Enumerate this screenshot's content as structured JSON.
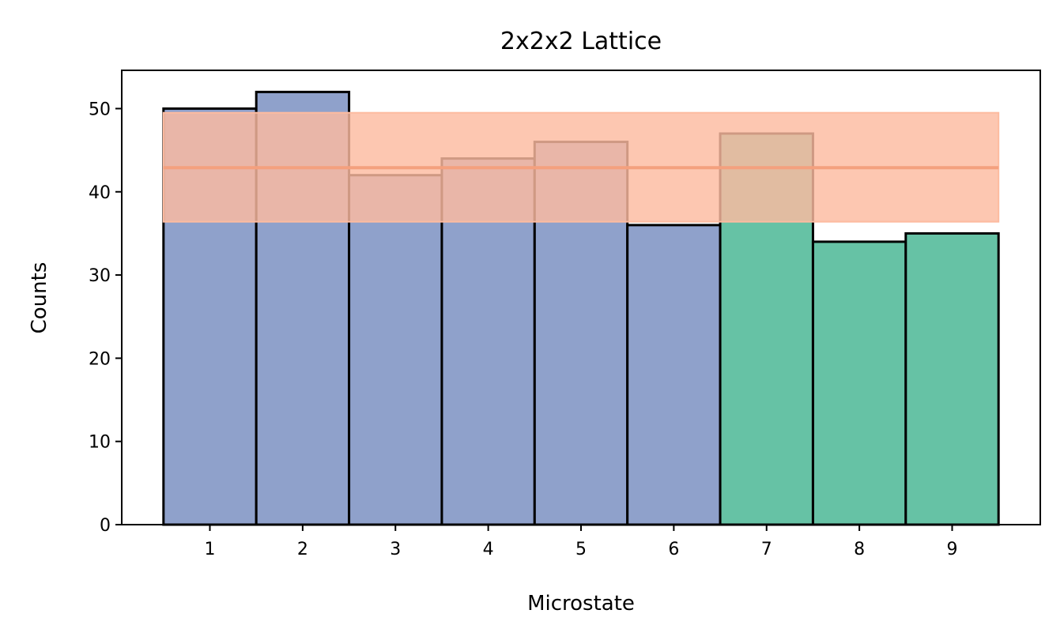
{
  "chart_data": {
    "type": "bar",
    "title": "2x2x2 Lattice",
    "xlabel": "Microstate",
    "ylabel": "Counts",
    "categories": [
      "1",
      "2",
      "3",
      "4",
      "5",
      "6",
      "7",
      "8",
      "9"
    ],
    "values": [
      50,
      52,
      42,
      44,
      46,
      36,
      47,
      34,
      35
    ],
    "bar_colors": [
      "#8fa1cb",
      "#8fa1cb",
      "#8fa1cb",
      "#8fa1cb",
      "#8fa1cb",
      "#8fa1cb",
      "#66c2a5",
      "#66c2a5",
      "#66c2a5"
    ],
    "edge_color": "#000000",
    "ylim": [
      0,
      54.6
    ],
    "yticks": [
      0,
      10,
      20,
      30,
      40,
      50
    ],
    "grid": false,
    "mean_line": {
      "value": 42.9,
      "color": "#f4a07e"
    },
    "band": {
      "low": 36.4,
      "high": 49.5,
      "color": "#fdbba0",
      "opacity": 0.82
    }
  }
}
